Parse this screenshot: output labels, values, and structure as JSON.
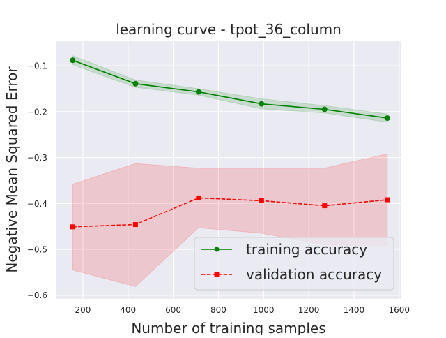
{
  "chart_data": {
    "type": "line",
    "title": "learning curve - tpot_36_column",
    "xlabel": "Number of training samples",
    "ylabel": "Negative Mean Squared Error",
    "xlim": [
      80,
      1610
    ],
    "ylim": [
      -0.608,
      -0.045
    ],
    "xticks": [
      200,
      400,
      600,
      800,
      1000,
      1200,
      1400,
      1600
    ],
    "yticks": [
      -0.1,
      -0.2,
      -0.3,
      -0.4,
      -0.5,
      -0.6
    ],
    "xtick_labels": [
      "200",
      "400",
      "600",
      "800",
      "1000",
      "1200",
      "1400",
      "1600"
    ],
    "ytick_labels": [
      "−0.1",
      "−0.2",
      "−0.3",
      "−0.4",
      "−0.5",
      "−0.6"
    ],
    "grid": true,
    "legend_position": "lower-right",
    "x": [
      155,
      433,
      712,
      991,
      1270,
      1548
    ],
    "series": [
      {
        "name": "training accuracy",
        "color": "#008000",
        "linestyle": "solid",
        "marker": "circle",
        "values": [
          -0.088,
          -0.139,
          -0.157,
          -0.183,
          -0.195,
          -0.214
        ],
        "band_upper": [
          -0.078,
          -0.131,
          -0.15,
          -0.172,
          -0.187,
          -0.205
        ],
        "band_lower": [
          -0.098,
          -0.147,
          -0.164,
          -0.194,
          -0.203,
          -0.223
        ]
      },
      {
        "name": "validation accuracy",
        "color": "#ff0000",
        "linestyle": "dashed",
        "marker": "square",
        "values": [
          -0.451,
          -0.446,
          -0.388,
          -0.394,
          -0.405,
          -0.392
        ],
        "band_upper": [
          -0.358,
          -0.313,
          -0.323,
          -0.323,
          -0.323,
          -0.292
        ],
        "band_lower": [
          -0.545,
          -0.581,
          -0.453,
          -0.465,
          -0.49,
          -0.492
        ]
      }
    ]
  }
}
